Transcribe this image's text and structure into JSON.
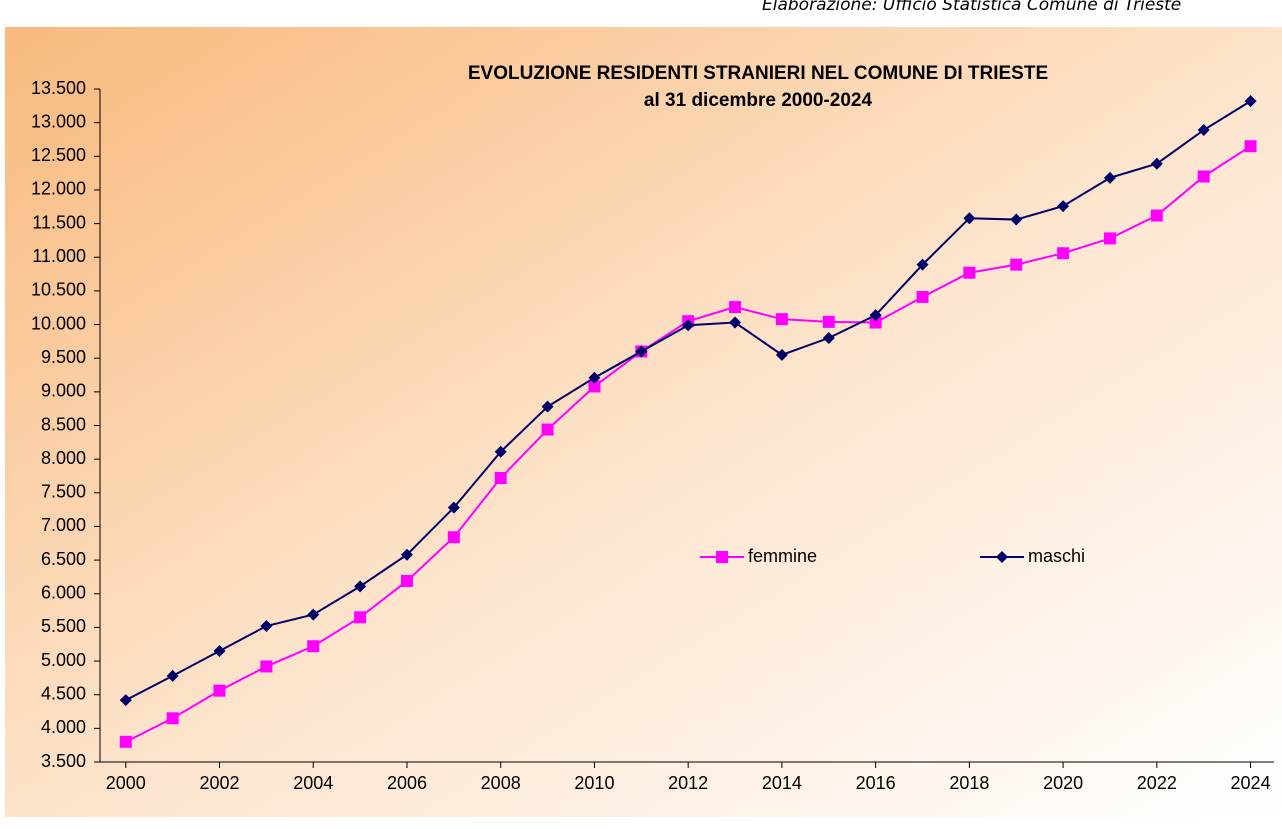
{
  "source": "Elaborazione: Ufficio Statistica Comune di Trieste",
  "chart_data": {
    "type": "line",
    "title": "EVOLUZIONE  RESIDENTI STRANIERI  NEL COMUNE  DI TRIESTE",
    "subtitle": "al 31 dicembre  2000-2024",
    "x": [
      2000,
      2001,
      2002,
      2003,
      2004,
      2005,
      2006,
      2007,
      2008,
      2009,
      2010,
      2011,
      2012,
      2013,
      2014,
      2015,
      2016,
      2017,
      2018,
      2019,
      2020,
      2021,
      2022,
      2023,
      2024
    ],
    "xlim": [
      1999.45,
      2024.5
    ],
    "xticks": [
      2000,
      2002,
      2004,
      2006,
      2008,
      2010,
      2012,
      2014,
      2016,
      2018,
      2020,
      2022,
      2024
    ],
    "ylim": [
      3500,
      13500
    ],
    "yticks": [
      {
        "value": 3500,
        "label": "3.500"
      },
      {
        "value": 4000,
        "label": "4.000"
      },
      {
        "value": 4500,
        "label": "4.500"
      },
      {
        "value": 5000,
        "label": "5.000"
      },
      {
        "value": 5500,
        "label": "5.500"
      },
      {
        "value": 6000,
        "label": "6.000"
      },
      {
        "value": 6500,
        "label": "6.500"
      },
      {
        "value": 7000,
        "label": "7.000"
      },
      {
        "value": 7500,
        "label": "7.500"
      },
      {
        "value": 8000,
        "label": "8.000"
      },
      {
        "value": 8500,
        "label": "8.500"
      },
      {
        "value": 9000,
        "label": "9.000"
      },
      {
        "value": 9500,
        "label": "9.500"
      },
      {
        "value": 10000,
        "label": "10.000"
      },
      {
        "value": 10500,
        "label": "10.500"
      },
      {
        "value": 11000,
        "label": "11.000"
      },
      {
        "value": 11500,
        "label": "11.500"
      },
      {
        "value": 12000,
        "label": "12.000"
      },
      {
        "value": 12500,
        "label": "12.500"
      },
      {
        "value": 13000,
        "label": "13.000"
      },
      {
        "value": 13500,
        "label": "13.500"
      }
    ],
    "grid": false,
    "series": [
      {
        "name": "femmine",
        "color": "#ff00ff",
        "marker": "square",
        "values": [
          3800,
          4150,
          4560,
          4920,
          5220,
          5650,
          6190,
          6840,
          7720,
          8440,
          9080,
          9600,
          10050,
          10260,
          10080,
          10040,
          10030,
          10410,
          10770,
          10890,
          11060,
          11280,
          11620,
          12200,
          12650
        ]
      },
      {
        "name": "maschi",
        "color": "#000066",
        "marker": "diamond",
        "values": [
          4420,
          4780,
          5150,
          5520,
          5690,
          6110,
          6580,
          7280,
          8110,
          8780,
          9210,
          9600,
          9990,
          10030,
          9550,
          9800,
          10140,
          10890,
          11580,
          11560,
          11760,
          12180,
          12390,
          12890,
          13320
        ]
      }
    ]
  }
}
